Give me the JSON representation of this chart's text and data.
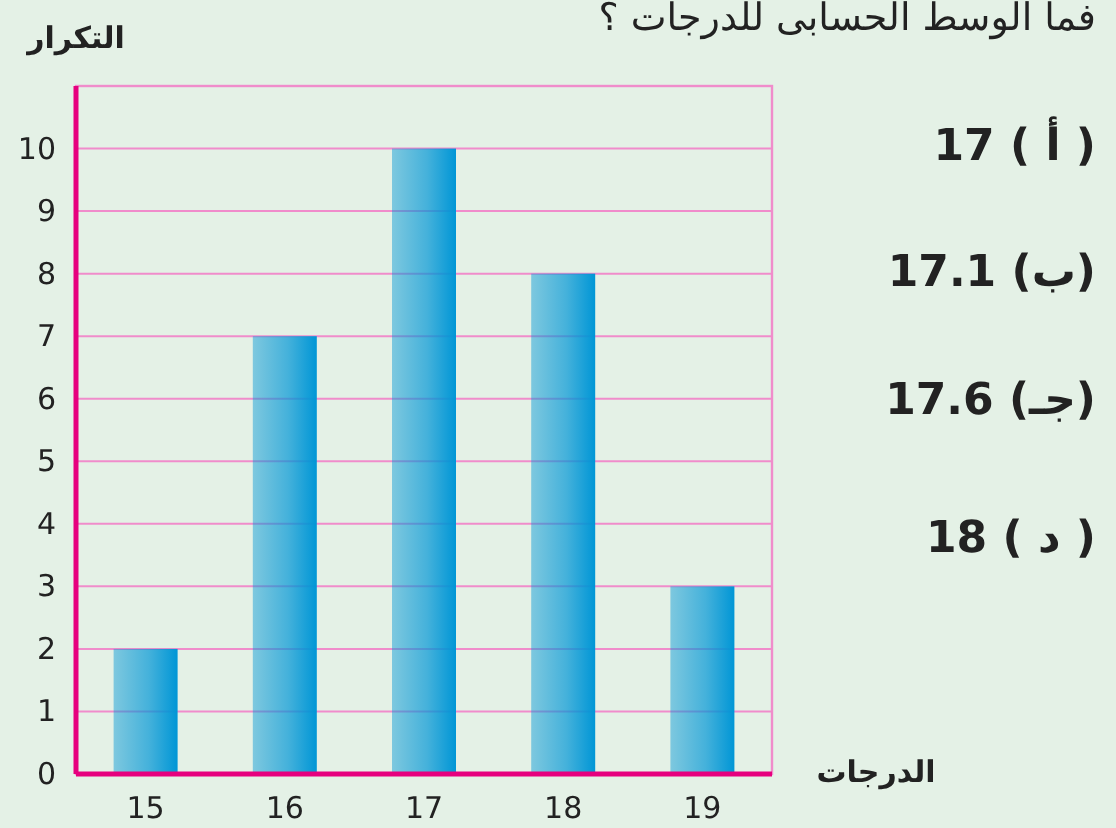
{
  "chart_data": {
    "type": "bar",
    "title": "فما الوسط الحسابى للدرجات ؟",
    "xlabel": "الدرجات",
    "ylabel": "التكرار",
    "categories": [
      "15",
      "16",
      "17",
      "18",
      "19"
    ],
    "values": [
      2,
      7,
      10,
      8,
      3
    ],
    "color": "#0096d6",
    "ylim": [
      0,
      11
    ],
    "yticks": [
      0,
      1,
      2,
      3,
      4,
      5,
      6,
      7,
      8,
      9,
      10
    ],
    "grid": "y",
    "annotations": [
      "( أ ) 17",
      "(ب) 17.1",
      "(جـ) 17.6",
      "( د ) 18"
    ]
  }
}
